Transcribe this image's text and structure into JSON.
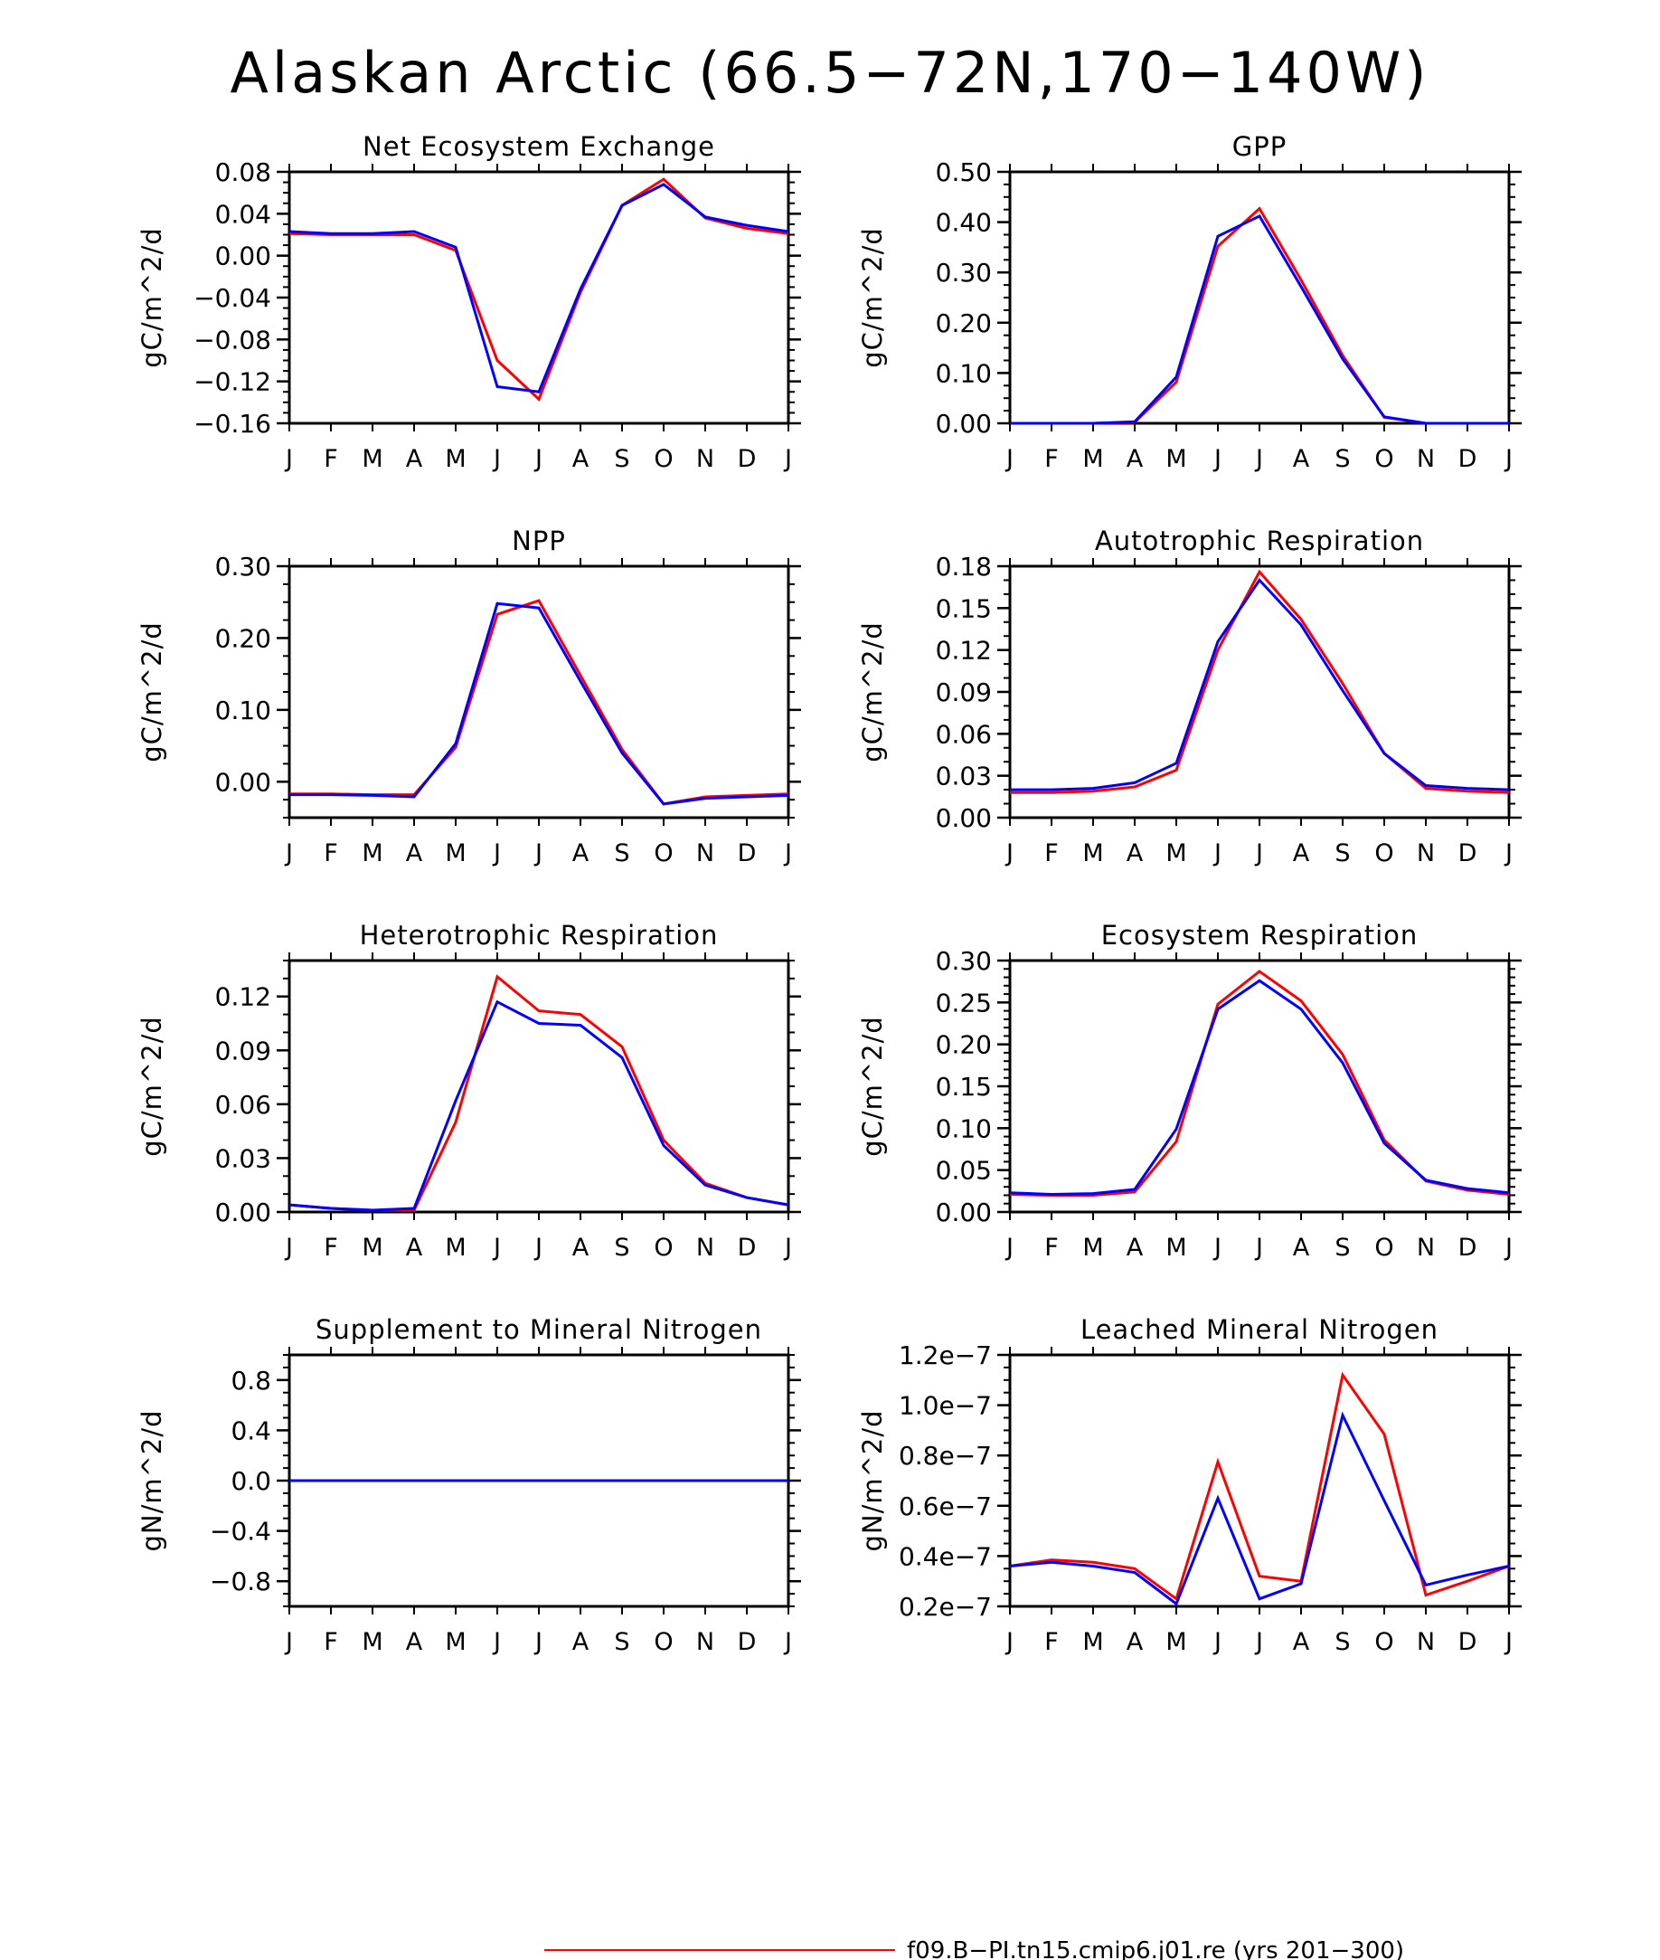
{
  "title": "Alaskan Arctic (66.5−72N,170−140W)",
  "colors": {
    "case": "#ff0000",
    "control": "#0000ff"
  },
  "months": [
    "J",
    "F",
    "M",
    "A",
    "M",
    "J",
    "J",
    "A",
    "S",
    "O",
    "N",
    "D",
    "J"
  ],
  "legend": {
    "entries": [
      {
        "label": "f09.B−PI.tn15.cmip6.j01.re (yrs 201−300)",
        "color": "#ff0000"
      }
    ]
  },
  "chart_data": [
    {
      "type": "line",
      "title": "Net Ecosystem Exchange",
      "ylabel": "gC/m^2/d",
      "ylim": [
        -0.16,
        0.08
      ],
      "yticks": [
        -0.16,
        -0.12,
        -0.08,
        -0.04,
        0.0,
        0.04,
        0.08
      ],
      "ytick_labels": [
        "−0.16",
        "−0.12",
        "−0.08",
        "−0.04",
        "0.00",
        "0.04",
        "0.08"
      ],
      "yminor": 0.01,
      "categories": [
        "J",
        "F",
        "M",
        "A",
        "M",
        "J",
        "J",
        "A",
        "S",
        "O",
        "N",
        "D",
        "J"
      ],
      "series": [
        {
          "color": "#ff0000",
          "values": [
            0.021,
            0.02,
            0.02,
            0.02,
            0.005,
            -0.1,
            -0.137,
            -0.035,
            0.048,
            0.073,
            0.036,
            0.026,
            0.021
          ]
        },
        {
          "color": "#0000ff",
          "values": [
            0.023,
            0.021,
            0.021,
            0.023,
            0.008,
            -0.125,
            -0.13,
            -0.032,
            0.048,
            0.068,
            0.037,
            0.029,
            0.023
          ]
        }
      ]
    },
    {
      "type": "line",
      "title": "GPP",
      "ylabel": "gC/m^2/d",
      "ylim": [
        0.0,
        0.5
      ],
      "yticks": [
        0.0,
        0.1,
        0.2,
        0.3,
        0.4,
        0.5
      ],
      "ytick_labels": [
        "0.00",
        "0.10",
        "0.20",
        "0.30",
        "0.40",
        "0.50"
      ],
      "yminor": 0.025,
      "categories": [
        "J",
        "F",
        "M",
        "A",
        "M",
        "J",
        "J",
        "A",
        "S",
        "O",
        "N",
        "D",
        "J"
      ],
      "series": [
        {
          "color": "#ff0000",
          "values": [
            0.0,
            0.0,
            0.0,
            0.002,
            0.082,
            0.352,
            0.427,
            0.285,
            0.135,
            0.012,
            0.0,
            0.0,
            0.0
          ]
        },
        {
          "color": "#0000ff",
          "values": [
            0.0,
            0.0,
            0.0,
            0.003,
            0.092,
            0.372,
            0.412,
            0.272,
            0.128,
            0.013,
            0.0,
            0.0,
            0.0
          ]
        }
      ]
    },
    {
      "type": "line",
      "title": "NPP",
      "ylabel": "gC/m^2/d",
      "ylim": [
        -0.05,
        0.3
      ],
      "yticks": [
        0.0,
        0.1,
        0.2,
        0.3
      ],
      "ytick_labels": [
        "0.00",
        "0.10",
        "0.20",
        "0.30"
      ],
      "yminor": 0.025,
      "categories": [
        "J",
        "F",
        "M",
        "A",
        "M",
        "J",
        "J",
        "A",
        "S",
        "O",
        "N",
        "D",
        "J"
      ],
      "series": [
        {
          "color": "#ff0000",
          "values": [
            -0.017,
            -0.017,
            -0.018,
            -0.018,
            0.048,
            0.233,
            0.252,
            0.148,
            0.045,
            -0.031,
            -0.021,
            -0.019,
            -0.017
          ]
        },
        {
          "color": "#0000ff",
          "values": [
            -0.018,
            -0.018,
            -0.019,
            -0.021,
            0.053,
            0.248,
            0.242,
            0.14,
            0.04,
            -0.031,
            -0.023,
            -0.021,
            -0.019
          ]
        }
      ]
    },
    {
      "type": "line",
      "title": "Autotrophic Respiration",
      "ylabel": "gC/m^2/d",
      "ylim": [
        0.0,
        0.18
      ],
      "yticks": [
        0.0,
        0.03,
        0.06,
        0.09,
        0.12,
        0.15,
        0.18
      ],
      "ytick_labels": [
        "0.00",
        "0.03",
        "0.06",
        "0.09",
        "0.12",
        "0.15",
        "0.18"
      ],
      "yminor": 0.01,
      "categories": [
        "J",
        "F",
        "M",
        "A",
        "M",
        "J",
        "J",
        "A",
        "S",
        "O",
        "N",
        "D",
        "J"
      ],
      "series": [
        {
          "color": "#ff0000",
          "values": [
            0.018,
            0.018,
            0.019,
            0.022,
            0.034,
            0.12,
            0.176,
            0.142,
            0.096,
            0.046,
            0.021,
            0.019,
            0.018
          ]
        },
        {
          "color": "#0000ff",
          "values": [
            0.02,
            0.02,
            0.021,
            0.025,
            0.039,
            0.126,
            0.17,
            0.138,
            0.091,
            0.046,
            0.023,
            0.021,
            0.02
          ]
        }
      ]
    },
    {
      "type": "line",
      "title": "Heterotrophic Respiration",
      "ylabel": "gC/m^2/d",
      "ylim": [
        0.0,
        0.14
      ],
      "yticks": [
        0.0,
        0.03,
        0.06,
        0.09,
        0.12
      ],
      "ytick_labels": [
        "0.00",
        "0.03",
        "0.06",
        "0.09",
        "0.12"
      ],
      "yminor": 0.01,
      "categories": [
        "J",
        "F",
        "M",
        "A",
        "M",
        "J",
        "J",
        "A",
        "S",
        "O",
        "N",
        "D",
        "J"
      ],
      "series": [
        {
          "color": "#ff0000",
          "values": [
            0.004,
            0.002,
            0.001,
            0.001,
            0.05,
            0.131,
            0.112,
            0.11,
            0.092,
            0.04,
            0.016,
            0.008,
            0.004
          ]
        },
        {
          "color": "#0000ff",
          "values": [
            0.004,
            0.002,
            0.001,
            0.002,
            0.062,
            0.117,
            0.105,
            0.104,
            0.086,
            0.037,
            0.015,
            0.008,
            0.004
          ]
        }
      ]
    },
    {
      "type": "line",
      "title": "Ecosystem Respiration",
      "ylabel": "gC/m^2/d",
      "ylim": [
        0.0,
        0.3
      ],
      "yticks": [
        0.0,
        0.05,
        0.1,
        0.15,
        0.2,
        0.25,
        0.3
      ],
      "ytick_labels": [
        "0.00",
        "0.05",
        "0.10",
        "0.15",
        "0.20",
        "0.25",
        "0.30"
      ],
      "yminor": 0.01,
      "categories": [
        "J",
        "F",
        "M",
        "A",
        "M",
        "J",
        "J",
        "A",
        "S",
        "O",
        "N",
        "D",
        "J"
      ],
      "series": [
        {
          "color": "#ff0000",
          "values": [
            0.021,
            0.02,
            0.02,
            0.024,
            0.084,
            0.248,
            0.287,
            0.252,
            0.188,
            0.086,
            0.037,
            0.026,
            0.021
          ]
        },
        {
          "color": "#0000ff",
          "values": [
            0.023,
            0.021,
            0.022,
            0.027,
            0.099,
            0.242,
            0.276,
            0.242,
            0.178,
            0.082,
            0.038,
            0.028,
            0.023
          ]
        }
      ]
    },
    {
      "type": "line",
      "title": "Supplement to Mineral Nitrogen",
      "ylabel": "gN/m^2/d",
      "ylim": [
        -1.0,
        1.0
      ],
      "yticks": [
        -0.8,
        -0.4,
        0.0,
        0.4,
        0.8
      ],
      "ytick_labels": [
        "−0.8",
        "−0.4",
        "0.0",
        "0.4",
        "0.8"
      ],
      "yminor": 0.1,
      "categories": [
        "J",
        "F",
        "M",
        "A",
        "M",
        "J",
        "J",
        "A",
        "S",
        "O",
        "N",
        "D",
        "J"
      ],
      "series": [
        {
          "color": "#ff0000",
          "values": [
            0,
            0,
            0,
            0,
            0,
            0,
            0,
            0,
            0,
            0,
            0,
            0,
            0
          ]
        },
        {
          "color": "#0000ff",
          "values": [
            0,
            0,
            0,
            0,
            0,
            0,
            0,
            0,
            0,
            0,
            0,
            0,
            0
          ]
        }
      ]
    },
    {
      "type": "line",
      "title": "Leached Mineral Nitrogen",
      "ylabel": "gN/m^2/d",
      "ylim": [
        2e-08,
        1.2e-07
      ],
      "yticks": [
        2e-08,
        4e-08,
        6e-08,
        8e-08,
        1e-07,
        1.2e-07
      ],
      "ytick_labels": [
        "0.2e−7",
        "0.4e−7",
        "0.6e−7",
        "0.8e−7",
        "1.0e−7",
        "1.2e−7"
      ],
      "yminor": 5e-09,
      "categories": [
        "J",
        "F",
        "M",
        "A",
        "M",
        "J",
        "J",
        "A",
        "S",
        "O",
        "N",
        "D",
        "J"
      ],
      "series": [
        {
          "color": "#ff0000",
          "values": [
            3.6e-08,
            3.85e-08,
            3.75e-08,
            3.5e-08,
            2.3e-08,
            7.75e-08,
            3.2e-08,
            3e-08,
            1.12e-07,
            8.85e-08,
            2.45e-08,
            3e-08,
            3.6e-08
          ]
        },
        {
          "color": "#0000ff",
          "values": [
            3.6e-08,
            3.75e-08,
            3.6e-08,
            3.35e-08,
            2.1e-08,
            6.3e-08,
            2.3e-08,
            2.9e-08,
            9.6e-08,
            6.2e-08,
            2.85e-08,
            3.25e-08,
            3.6e-08
          ]
        }
      ]
    }
  ]
}
